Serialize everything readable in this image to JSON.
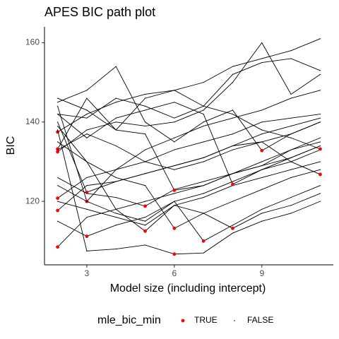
{
  "chart_data": {
    "type": "line",
    "title": "APES BIC path plot",
    "x_label": "Model size (including intercept)",
    "y_label": "BIC",
    "x": [
      2,
      3,
      4,
      5,
      6,
      7,
      8,
      9,
      10,
      11
    ],
    "xlim": [
      1.55,
      11.45
    ],
    "xticks": [
      3,
      6,
      9
    ],
    "ylim": [
      104,
      164
    ],
    "yticks": [
      120,
      140,
      160
    ],
    "line_color": "#000000",
    "min_color": "#ff0000",
    "legend": {
      "title": "mle_bic_min",
      "labels": [
        "TRUE",
        "FALSE"
      ],
      "position": "bottom"
    },
    "series": [
      {
        "values": [
          137.5,
          142,
          145,
          147,
          148,
          150,
          154,
          156,
          158,
          161
        ]
      },
      {
        "values": [
          133.2,
          146,
          138,
          146,
          148,
          144,
          152,
          155,
          156,
          153
        ]
      },
      {
        "values": [
          132.5,
          138,
          140,
          139,
          140,
          143,
          150,
          160,
          147,
          152
        ]
      },
      {
        "values": [
          120.8,
          126,
          128,
          130,
          133,
          135,
          137,
          140,
          141,
          142
        ]
      },
      {
        "values": [
          117.7,
          124,
          125,
          127,
          129,
          131,
          134,
          135,
          137,
          140
        ]
      },
      {
        "values": [
          108.5,
          116,
          118,
          120,
          122,
          124,
          127,
          130,
          133,
          136
        ]
      },
      {
        "values": [
          140,
          122.3,
          125,
          127,
          129,
          131,
          134,
          137,
          139,
          141
        ]
      },
      {
        "values": [
          144,
          120,
          128,
          133,
          136,
          139,
          141,
          143,
          146,
          148
        ]
      },
      {
        "values": [
          115,
          111.2,
          114,
          116,
          120,
          122,
          125,
          128,
          130,
          133
        ]
      },
      {
        "values": [
          126,
          122,
          121,
          118.8,
          123,
          125,
          127,
          129,
          131,
          134
        ]
      },
      {
        "values": [
          135,
          130,
          118,
          112.5,
          119,
          121,
          124,
          126,
          128,
          130
        ]
      },
      {
        "values": [
          146,
          143,
          138,
          137,
          122.8,
          124,
          127,
          129,
          133,
          135
        ]
      },
      {
        "values": [
          139,
          130,
          126,
          124,
          113.2,
          117,
          120,
          123,
          126,
          128
        ]
      },
      {
        "values": [
          138,
          107.5,
          108,
          109,
          106.7,
          107,
          112,
          115,
          117,
          120
        ]
      },
      {
        "values": [
          124,
          120,
          117,
          115,
          120,
          110,
          114,
          118,
          121,
          124
        ]
      },
      {
        "values": [
          142,
          136,
          141,
          143,
          145,
          142,
          124.3,
          128,
          131,
          134
        ]
      },
      {
        "values": [
          120,
          118,
          116,
          114,
          119,
          117,
          113.2,
          117,
          119,
          122
        ]
      },
      {
        "values": [
          145,
          148,
          154,
          140,
          135,
          140,
          143,
          132.8,
          137,
          140
        ]
      },
      {
        "values": [
          142,
          141,
          146,
          144,
          141,
          144,
          142,
          138,
          136,
          133.2
        ]
      },
      {
        "values": [
          133,
          137,
          134,
          130,
          128,
          130,
          133,
          135,
          130,
          126.8
        ]
      }
    ]
  }
}
